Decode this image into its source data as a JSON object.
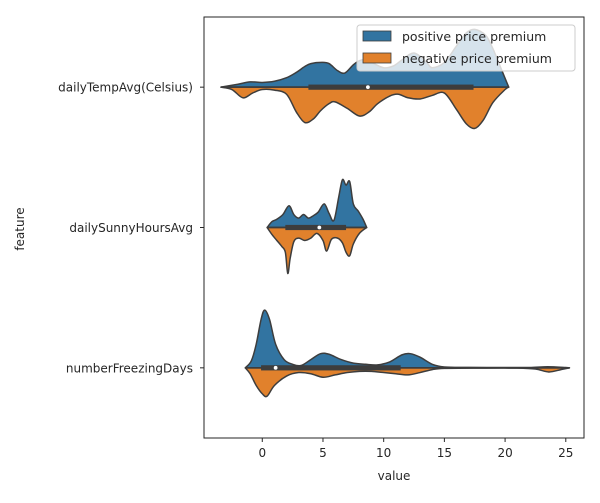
{
  "chart_data": {
    "type": "violin",
    "orientation": "horizontal",
    "split": true,
    "xlabel": "value",
    "ylabel": "feature",
    "xlim": [
      -4.8,
      26.5
    ],
    "x_ticks": [
      0,
      5,
      10,
      15,
      20,
      25
    ],
    "categories": [
      "dailyTempAvg(Celsius)",
      "dailySunnyHoursAvg",
      "numberFreezingDays"
    ],
    "legend_position": "top-right",
    "series": [
      {
        "name": "positive price premium",
        "color": "#3274a1"
      },
      {
        "name": "negative price premium",
        "color": "#e1812c"
      }
    ],
    "violins": [
      {
        "category": "dailyTempAvg(Celsius)",
        "max_width_fraction": 0.42,
        "positive": [
          [
            -3.4,
            0.0
          ],
          [
            -2,
            0.05
          ],
          [
            -1,
            0.09
          ],
          [
            0,
            0.08
          ],
          [
            1,
            0.1
          ],
          [
            2,
            0.16
          ],
          [
            2.8,
            0.25
          ],
          [
            3.5,
            0.35
          ],
          [
            4,
            0.4
          ],
          [
            4.9,
            0.42
          ],
          [
            5.5,
            0.4
          ],
          [
            6.2,
            0.28
          ],
          [
            6.8,
            0.24
          ],
          [
            7.5,
            0.38
          ],
          [
            8,
            0.45
          ],
          [
            8.6,
            0.47
          ],
          [
            9.2,
            0.4
          ],
          [
            10,
            0.33
          ],
          [
            10.8,
            0.36
          ],
          [
            11.5,
            0.46
          ],
          [
            12.5,
            0.58
          ],
          [
            13.5,
            0.43
          ],
          [
            14,
            0.33
          ],
          [
            15,
            0.42
          ],
          [
            16,
            0.7
          ],
          [
            16.8,
            0.92
          ],
          [
            17.5,
            0.98
          ],
          [
            18.4,
            0.88
          ],
          [
            19,
            0.65
          ],
          [
            19.8,
            0.25
          ],
          [
            20.3,
            0.0
          ]
        ],
        "negative": [
          [
            -3.4,
            0.0
          ],
          [
            -2.5,
            0.04
          ],
          [
            -1.6,
            0.18
          ],
          [
            -0.8,
            0.1
          ],
          [
            0,
            0.04
          ],
          [
            1,
            0.05
          ],
          [
            2,
            0.12
          ],
          [
            2.8,
            0.42
          ],
          [
            3.5,
            0.6
          ],
          [
            4.2,
            0.54
          ],
          [
            4.8,
            0.4
          ],
          [
            5.5,
            0.28
          ],
          [
            6,
            0.25
          ],
          [
            7,
            0.36
          ],
          [
            8,
            0.49
          ],
          [
            8.8,
            0.42
          ],
          [
            9.5,
            0.28
          ],
          [
            10.5,
            0.15
          ],
          [
            11.2,
            0.12
          ],
          [
            12,
            0.18
          ],
          [
            13,
            0.2
          ],
          [
            14,
            0.14
          ],
          [
            15,
            0.1
          ],
          [
            16,
            0.38
          ],
          [
            16.8,
            0.62
          ],
          [
            17.5,
            0.7
          ],
          [
            18.2,
            0.56
          ],
          [
            19,
            0.26
          ],
          [
            20,
            0.04
          ],
          [
            20.3,
            0.0
          ]
        ],
        "box": {
          "q1": 3.8,
          "median": 8.7,
          "q3": 17.4,
          "whisker_low": -3.4,
          "whisker_high": 20.3
        }
      },
      {
        "category": "dailySunnyHoursAvg",
        "max_width_fraction": 0.42,
        "positive": [
          [
            0.4,
            0.0
          ],
          [
            0.8,
            0.1
          ],
          [
            1.2,
            0.14
          ],
          [
            1.7,
            0.22
          ],
          [
            2.2,
            0.37
          ],
          [
            2.6,
            0.22
          ],
          [
            3,
            0.16
          ],
          [
            3.4,
            0.22
          ],
          [
            3.8,
            0.16
          ],
          [
            4.2,
            0.2
          ],
          [
            4.6,
            0.26
          ],
          [
            5.1,
            0.4
          ],
          [
            5.5,
            0.24
          ],
          [
            5.9,
            0.12
          ],
          [
            6.3,
            0.52
          ],
          [
            6.6,
            0.81
          ],
          [
            6.9,
            0.72
          ],
          [
            7.2,
            0.78
          ],
          [
            7.5,
            0.4
          ],
          [
            7.9,
            0.28
          ],
          [
            8.3,
            0.14
          ],
          [
            8.6,
            0.0
          ]
        ],
        "negative": [
          [
            0.4,
            0.0
          ],
          [
            0.8,
            0.12
          ],
          [
            1.2,
            0.22
          ],
          [
            1.6,
            0.32
          ],
          [
            1.9,
            0.42
          ],
          [
            2.1,
            0.78
          ],
          [
            2.3,
            0.52
          ],
          [
            2.6,
            0.24
          ],
          [
            3,
            0.18
          ],
          [
            3.5,
            0.22
          ],
          [
            4,
            0.18
          ],
          [
            4.5,
            0.1
          ],
          [
            5,
            0.22
          ],
          [
            5.3,
            0.4
          ],
          [
            5.7,
            0.2
          ],
          [
            6.2,
            0.18
          ],
          [
            6.6,
            0.26
          ],
          [
            6.9,
            0.42
          ],
          [
            7.2,
            0.48
          ],
          [
            7.5,
            0.28
          ],
          [
            8,
            0.1
          ],
          [
            8.6,
            0.0
          ]
        ],
        "box": {
          "q1": 1.9,
          "median": 4.7,
          "q3": 6.9,
          "whisker_low": 0.4,
          "whisker_high": 8.6
        }
      },
      {
        "category": "numberFreezingDays",
        "max_width_fraction": 0.42,
        "positive": [
          [
            -1.4,
            0.0
          ],
          [
            -0.9,
            0.12
          ],
          [
            -0.5,
            0.4
          ],
          [
            -0.1,
            0.82
          ],
          [
            0.2,
            0.98
          ],
          [
            0.6,
            0.82
          ],
          [
            1.1,
            0.4
          ],
          [
            1.8,
            0.14
          ],
          [
            2.5,
            0.06
          ],
          [
            3.2,
            0.04
          ],
          [
            4,
            0.14
          ],
          [
            4.8,
            0.24
          ],
          [
            5.5,
            0.23
          ],
          [
            6.5,
            0.14
          ],
          [
            7.5,
            0.08
          ],
          [
            8.5,
            0.06
          ],
          [
            9.5,
            0.05
          ],
          [
            10.5,
            0.1
          ],
          [
            11.5,
            0.22
          ],
          [
            12.2,
            0.24
          ],
          [
            13,
            0.18
          ],
          [
            14,
            0.06
          ],
          [
            15,
            0.015
          ],
          [
            17,
            0.008
          ],
          [
            20,
            0.005
          ],
          [
            22,
            0.006
          ],
          [
            23.5,
            0.018
          ],
          [
            25,
            0.005
          ],
          [
            25.3,
            0.0
          ]
        ],
        "negative": [
          [
            -1.4,
            0.0
          ],
          [
            -1,
            0.1
          ],
          [
            -0.5,
            0.3
          ],
          [
            0,
            0.44
          ],
          [
            0.4,
            0.48
          ],
          [
            1,
            0.3
          ],
          [
            2,
            0.14
          ],
          [
            3,
            0.08
          ],
          [
            4,
            0.1
          ],
          [
            5,
            0.16
          ],
          [
            6,
            0.12
          ],
          [
            7,
            0.08
          ],
          [
            8,
            0.06
          ],
          [
            9,
            0.06
          ],
          [
            10,
            0.08
          ],
          [
            11,
            0.1
          ],
          [
            12,
            0.12
          ],
          [
            13,
            0.08
          ],
          [
            14,
            0.03
          ],
          [
            15,
            0.01
          ],
          [
            18,
            0.005
          ],
          [
            21,
            0.005
          ],
          [
            22.5,
            0.02
          ],
          [
            23.6,
            0.07
          ],
          [
            24.6,
            0.03
          ],
          [
            25.3,
            0.0
          ]
        ],
        "box": {
          "q1": -0.1,
          "median": 1.1,
          "q3": 11.4,
          "whisker_low": -1.4,
          "whisker_high": 25.3
        }
      }
    ]
  }
}
